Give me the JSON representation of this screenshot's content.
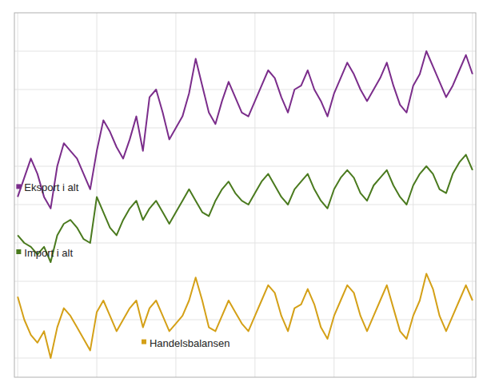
{
  "chart_data": {
    "type": "line",
    "x": [
      0,
      1,
      2,
      3,
      4,
      5,
      6,
      7,
      8,
      9,
      10,
      11,
      12,
      13,
      14,
      15,
      16,
      17,
      18,
      19,
      20,
      21,
      22,
      23,
      24,
      25,
      26,
      27,
      28,
      29,
      30,
      31,
      32,
      33,
      34,
      35,
      36,
      37,
      38,
      39,
      40,
      41,
      42,
      43,
      44,
      45,
      46,
      47,
      48,
      49,
      50,
      51,
      52,
      53,
      54,
      55,
      56,
      57,
      58,
      59,
      60,
      61,
      62,
      63,
      64,
      65,
      66,
      67,
      68,
      69
    ],
    "xlim": [
      -0.5,
      69.5
    ],
    "xticks": [
      0,
      12,
      24,
      36,
      48,
      60,
      69
    ],
    "ylim": [
      15,
      110
    ],
    "yticks": [
      20,
      30,
      40,
      50,
      60,
      70,
      80,
      90,
      100
    ],
    "grid": true,
    "tick_labels": false,
    "series": [
      {
        "name": "Eksport i alt",
        "color": "#7B2D8B",
        "values": [
          62,
          67,
          72,
          68,
          62,
          59,
          70,
          76,
          74,
          72,
          68,
          64,
          74,
          82,
          79,
          75,
          72,
          77,
          83,
          74,
          88,
          90,
          84,
          77,
          80,
          83,
          89,
          98,
          91,
          84,
          81,
          87,
          92,
          88,
          84,
          83,
          87,
          91,
          95,
          93,
          88,
          84,
          90,
          91,
          95,
          90,
          87,
          83,
          89,
          93,
          97,
          94,
          90,
          87,
          90,
          93,
          97,
          91,
          86,
          84,
          91,
          94,
          100,
          96,
          92,
          88,
          91,
          95,
          99,
          94
        ]
      },
      {
        "name": "Import i alt",
        "color": "#4A7A1E",
        "values": [
          52,
          50,
          49,
          47,
          49,
          45,
          52,
          55,
          56,
          54,
          51,
          50,
          62,
          58,
          54,
          52,
          56,
          59,
          61,
          56,
          59,
          61,
          58,
          55,
          58,
          61,
          64,
          61,
          58,
          57,
          61,
          64,
          66,
          63,
          61,
          60,
          63,
          66,
          68,
          65,
          62,
          60,
          64,
          66,
          68,
          64,
          61,
          59,
          64,
          67,
          69,
          67,
          63,
          61,
          65,
          67,
          69,
          65,
          62,
          60,
          65,
          68,
          70,
          68,
          64,
          63,
          68,
          71,
          73,
          69
        ]
      },
      {
        "name": "Handelsbalansen",
        "color": "#D4A017",
        "values": [
          36,
          30,
          26,
          24,
          27,
          20,
          28,
          33,
          31,
          28,
          25,
          22,
          32,
          35,
          31,
          27,
          30,
          33,
          35,
          28,
          33,
          35,
          31,
          27,
          29,
          31,
          35,
          41,
          35,
          28,
          27,
          31,
          35,
          32,
          29,
          27,
          31,
          35,
          39,
          37,
          31,
          27,
          33,
          34,
          38,
          34,
          28,
          25,
          31,
          35,
          39,
          37,
          31,
          27,
          31,
          35,
          39,
          33,
          27,
          25,
          31,
          35,
          42,
          38,
          31,
          27,
          31,
          35,
          39,
          35
        ]
      }
    ]
  }
}
